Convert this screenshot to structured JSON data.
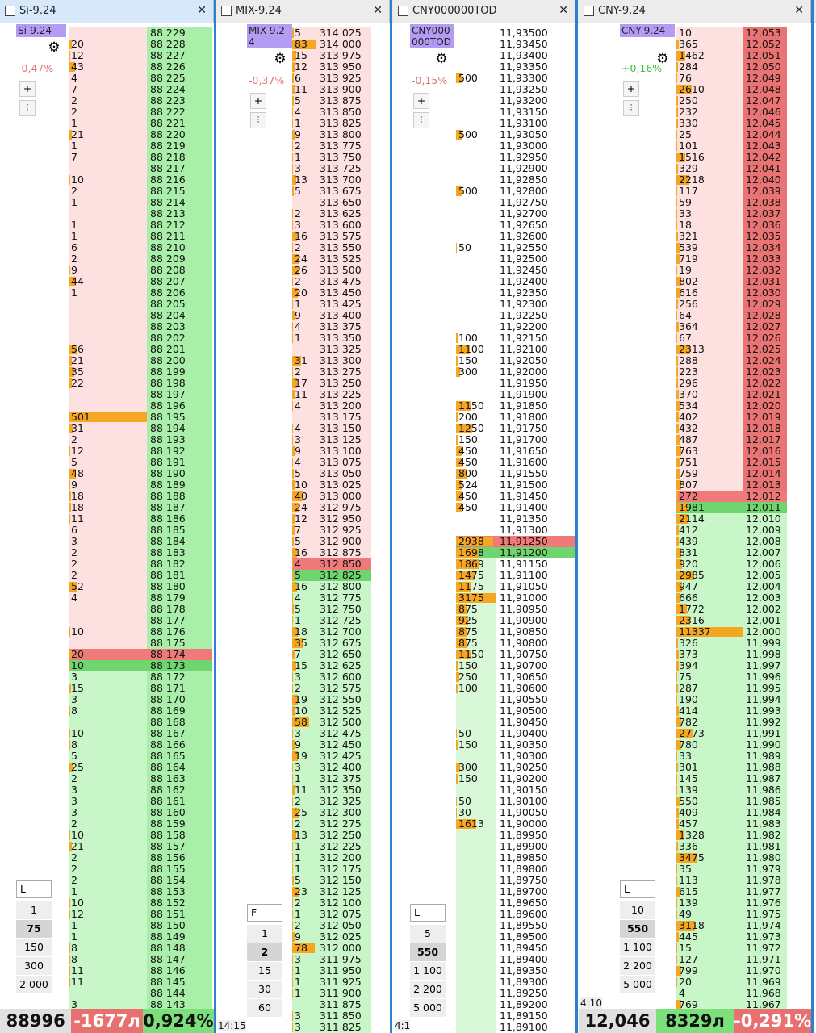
{
  "panels": [
    {
      "tab": "Si-9.24",
      "instrument": "Si-9.24",
      "change": "-0,47%",
      "mode": "L",
      "lots": [
        "1",
        "75",
        "150",
        "300",
        "2 000"
      ],
      "asks": {
        "prices": [
          "88 229",
          "88 228",
          "88 227",
          "88 226",
          "88 225",
          "88 224",
          "88 223",
          "88 222",
          "88 221",
          "88 220",
          "88 219",
          "88 218",
          "88 217",
          "88 216",
          "88 215",
          "88 214",
          "88 213",
          "88 212",
          "88 211",
          "88 210",
          "88 209",
          "88 208",
          "88 207",
          "88 206",
          "88 205",
          "88 204",
          "88 203",
          "88 202",
          "88 201",
          "88 200",
          "88 199",
          "88 198",
          "88 197",
          "88 196",
          "88 195",
          "88 194",
          "88 193",
          "88 192",
          "88 191",
          "88 190",
          "88 189",
          "88 188",
          "88 187",
          "88 186",
          "88 185",
          "88 184",
          "88 183",
          "88 182",
          "88 181",
          "88 180",
          "88 179",
          "88 178",
          "88 177",
          "88 176",
          "88 175",
          "88 174"
        ],
        "volumes": [
          null,
          20,
          12,
          43,
          4,
          7,
          2,
          2,
          1,
          21,
          1,
          7,
          null,
          10,
          2,
          1,
          null,
          1,
          1,
          6,
          2,
          9,
          44,
          1,
          null,
          null,
          null,
          null,
          56,
          21,
          35,
          22,
          null,
          null,
          501,
          31,
          2,
          12,
          5,
          48,
          9,
          18,
          18,
          11,
          6,
          3,
          2,
          2,
          2,
          52,
          4,
          null,
          null,
          10,
          null,
          20
        ]
      },
      "bids": {
        "prices": [
          "88 173",
          "88 172",
          "88 171",
          "88 170",
          "88 169",
          "88 168",
          "88 167",
          "88 166",
          "88 165",
          "88 164",
          "88 163",
          "88 162",
          "88 161",
          "88 160",
          "88 159",
          "88 158",
          "88 157",
          "88 156",
          "88 155",
          "88 154",
          "88 153",
          "88 152",
          "88 151",
          "88 150",
          "88 149",
          "88 148",
          "88 147",
          "88 146",
          "88 145",
          "88 144",
          "88 143"
        ],
        "volumes": [
          10,
          3,
          15,
          3,
          8,
          null,
          10,
          8,
          5,
          25,
          2,
          3,
          3,
          3,
          2,
          10,
          21,
          2,
          2,
          2,
          1,
          10,
          12,
          1,
          1,
          8,
          8,
          11,
          11,
          null,
          3
        ]
      },
      "footer": [
        "88996",
        "-1677л",
        "0,924%"
      ]
    },
    {
      "tab": "MIX-9.24",
      "instrument": "MIX-9.24",
      "change": "-0,37%",
      "mode": "F",
      "lots": [
        "1",
        "2",
        "15",
        "30",
        "60"
      ],
      "time": "14:15",
      "asks": {
        "prices": [
          "314 025",
          "314 000",
          "313 975",
          "313 950",
          "313 925",
          "313 900",
          "313 875",
          "313 850",
          "313 825",
          "313 800",
          "313 775",
          "313 750",
          "313 725",
          "313 700",
          "313 675",
          "313 650",
          "313 625",
          "313 600",
          "313 575",
          "313 550",
          "313 525",
          "313 500",
          "313 475",
          "313 450",
          "313 425",
          "313 400",
          "313 375",
          "313 350",
          "313 325",
          "313 300",
          "313 275",
          "313 250",
          "313 225",
          "313 200",
          "313 175",
          "313 150",
          "313 125",
          "313 100",
          "313 075",
          "313 050",
          "313 025",
          "313 000",
          "312 975",
          "312 950",
          "312 925",
          "312 900",
          "312 875",
          "312 850"
        ],
        "volumes": [
          5,
          83,
          15,
          12,
          6,
          11,
          5,
          4,
          1,
          9,
          2,
          1,
          3,
          13,
          5,
          null,
          2,
          3,
          16,
          2,
          24,
          26,
          2,
          20,
          1,
          9,
          4,
          1,
          null,
          31,
          2,
          17,
          11,
          4,
          null,
          4,
          3,
          9,
          4,
          5,
          10,
          40,
          24,
          12,
          7,
          5,
          16,
          4
        ]
      },
      "bids": {
        "prices": [
          "312 825",
          "312 800",
          "312 775",
          "312 750",
          "312 725",
          "312 700",
          "312 675",
          "312 650",
          "312 625",
          "312 600",
          "312 575",
          "312 550",
          "312 525",
          "312 500",
          "312 475",
          "312 450",
          "312 425",
          "312 400",
          "312 375",
          "312 350",
          "312 325",
          "312 300",
          "312 275",
          "312 250",
          "312 225",
          "312 200",
          "312 175",
          "312 150",
          "312 125",
          "312 100",
          "312 075",
          "312 050",
          "312 025",
          "312 000",
          "311 975",
          "311 950",
          "311 925",
          "311 900",
          "311 875",
          "311 850",
          "311 825"
        ],
        "volumes": [
          5,
          16,
          4,
          5,
          1,
          18,
          35,
          7,
          15,
          3,
          2,
          19,
          10,
          58,
          3,
          9,
          19,
          3,
          1,
          11,
          2,
          25,
          2,
          13,
          1,
          1,
          1,
          5,
          23,
          2,
          1,
          2,
          9,
          78,
          3,
          1,
          1,
          1,
          null,
          3,
          3
        ]
      }
    },
    {
      "tab": "CNY000000TOD",
      "instrument": "CNY000000TOD",
      "change": "-0,15%",
      "mode": "L",
      "lots": [
        "5",
        "550",
        "1 100",
        "2 200",
        "5 000"
      ],
      "time": "4:1",
      "asks": {
        "prices": [
          "11,93500",
          "11,93450",
          "11,93400",
          "11,93350",
          "11,93300",
          "11,93250",
          "11,93200",
          "11,93150",
          "11,93100",
          "11,93050",
          "11,93000",
          "11,92950",
          "11,92900",
          "11,92850",
          "11,92800",
          "11,92750",
          "11,92700",
          "11,92650",
          "11,92600",
          "11,92550",
          "11,92500",
          "11,92450",
          "11,92400",
          "11,92350",
          "11,92300",
          "11,92250",
          "11,92200",
          "11,92150",
          "11,92100",
          "11,92050",
          "11,92000",
          "11,91950",
          "11,91900",
          "11,91850",
          "11,91800",
          "11,91750",
          "11,91700",
          "11,91650",
          "11,91600",
          "11,91550",
          "11,91500",
          "11,91450",
          "11,91400",
          "11,91350",
          "11,91300",
          "11,91250"
        ],
        "volumes": [
          null,
          null,
          null,
          null,
          500,
          null,
          null,
          null,
          null,
          500,
          null,
          null,
          null,
          null,
          500,
          null,
          null,
          null,
          null,
          50,
          null,
          null,
          null,
          null,
          null,
          null,
          null,
          100,
          1100,
          150,
          300,
          null,
          null,
          1150,
          200,
          1250,
          150,
          450,
          450,
          800,
          524,
          450,
          450,
          null,
          null,
          2938
        ]
      },
      "bids": {
        "prices": [
          "11,91200",
          "11,91150",
          "11,91100",
          "11,91050",
          "11,91000",
          "11,90950",
          "11,90900",
          "11,90850",
          "11,90800",
          "11,90750",
          "11,90700",
          "11,90650",
          "11,90600",
          "11,90550",
          "11,90500",
          "11,90450",
          "11,90400",
          "11,90350",
          "11,90300",
          "11,90250",
          "11,90200",
          "11,90150",
          "11,90100",
          "11,90050",
          "11,90000",
          "11,89950",
          "11,89900",
          "11,89850",
          "11,89800",
          "11,89750",
          "11,89700",
          "11,89650",
          "11,89600",
          "11,89550",
          "11,89500",
          "11,89450",
          "11,89400",
          "11,89350",
          "11,89300",
          "11,89250",
          "11,89200",
          "11,89150",
          "11,89100"
        ],
        "volumes": [
          1698,
          1869,
          1475,
          1175,
          3175,
          875,
          925,
          875,
          875,
          1150,
          150,
          250,
          100,
          null,
          null,
          null,
          50,
          150,
          null,
          300,
          150,
          null,
          50,
          30,
          1613,
          null,
          null,
          null,
          null,
          null,
          null,
          null,
          null,
          null,
          null,
          null,
          null,
          null,
          null,
          null,
          null,
          null,
          null
        ]
      }
    },
    {
      "tab": "CNY-9.24",
      "instrument": "CNY-9.24",
      "change": "+0,16%",
      "mode": "L",
      "lots": [
        "10",
        "550",
        "1 100",
        "2 200",
        "5 000"
      ],
      "time": "4:10",
      "asks": {
        "prices": [
          "12,053",
          "12,052",
          "12,051",
          "12,050",
          "12,049",
          "12,048",
          "12,047",
          "12,046",
          "12,045",
          "12,044",
          "12,043",
          "12,042",
          "12,041",
          "12,040",
          "12,039",
          "12,038",
          "12,037",
          "12,036",
          "12,035",
          "12,034",
          "12,033",
          "12,032",
          "12,031",
          "12,030",
          "12,029",
          "12,028",
          "12,027",
          "12,026",
          "12,025",
          "12,024",
          "12,023",
          "12,022",
          "12,021",
          "12,020",
          "12,019",
          "12,018",
          "12,017",
          "12,016",
          "12,015",
          "12,014",
          "12,013",
          "12,012"
        ],
        "volumes": [
          10,
          365,
          1462,
          284,
          76,
          2610,
          250,
          232,
          330,
          25,
          101,
          1516,
          329,
          2218,
          117,
          59,
          33,
          18,
          321,
          539,
          719,
          19,
          802,
          616,
          256,
          64,
          364,
          67,
          2313,
          288,
          223,
          296,
          370,
          534,
          402,
          432,
          487,
          763,
          751,
          759,
          807,
          272
        ]
      },
      "bids": {
        "prices": [
          "12,011",
          "12,010",
          "12,009",
          "12,008",
          "12,007",
          "12,006",
          "12,005",
          "12,004",
          "12,003",
          "12,002",
          "12,001",
          "12,000",
          "11,999",
          "11,998",
          "11,997",
          "11,996",
          "11,995",
          "11,994",
          "11,993",
          "11,992",
          "11,991",
          "11,990",
          "11,989",
          "11,988",
          "11,987",
          "11,986",
          "11,985",
          "11,984",
          "11,983",
          "11,982",
          "11,981",
          "11,980",
          "11,979",
          "11,978",
          "11,977",
          "11,976",
          "11,975",
          "11,974",
          "11,973",
          "11,972",
          "11,971",
          "11,970",
          "11,969",
          "11,968",
          "11,967"
        ],
        "volumes": [
          1981,
          2114,
          412,
          439,
          831,
          920,
          2985,
          947,
          666,
          1772,
          2316,
          11337,
          326,
          373,
          394,
          75,
          287,
          190,
          414,
          782,
          2773,
          780,
          33,
          301,
          145,
          139,
          550,
          409,
          457,
          1328,
          336,
          3475,
          35,
          113,
          615,
          139,
          49,
          3118,
          445,
          15,
          127,
          799,
          20,
          4,
          769
        ]
      },
      "footer": [
        "12,046",
        "8329л",
        "-0,291%"
      ]
    }
  ]
}
